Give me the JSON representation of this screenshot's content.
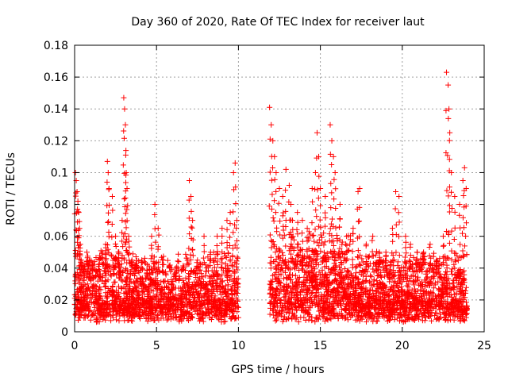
{
  "chart_data": {
    "type": "scatter",
    "title": "Day 360 of 2020, Rate Of TEC Index for receiver laut",
    "xlabel": "GPS time / hours",
    "ylabel": "ROTI / TECUs",
    "xlim": [
      0,
      25
    ],
    "ylim": [
      0,
      0.18
    ],
    "x_ticks": [
      0,
      5,
      10,
      15,
      20,
      25
    ],
    "y_ticks": [
      0,
      0.02,
      0.04,
      0.06,
      0.08,
      0.1,
      0.12,
      0.14,
      0.16,
      0.18
    ],
    "x_tick_labels": [
      "0",
      "5",
      "10",
      "15",
      "20",
      "25"
    ],
    "y_tick_labels": [
      "0",
      "0.02",
      "0.04",
      "0.06",
      "0.08",
      "0.1",
      "0.12",
      "0.14",
      "0.16",
      "0.18"
    ],
    "grid": true,
    "marker": "+",
    "color": "#ff0000",
    "data_gap": [
      10.0,
      11.9
    ],
    "series": [
      {
        "x": [
          0.05,
          0.1,
          0.15,
          0.2,
          0.25,
          0.3,
          0.35,
          0.4,
          0.5,
          0.6,
          0.75,
          0.9,
          1.1,
          1.3,
          1.5,
          1.7,
          1.9,
          2.0,
          2.05,
          2.1,
          2.3,
          2.5,
          2.7,
          2.9,
          3.0,
          3.05,
          3.1,
          3.12,
          3.15,
          3.2,
          3.3,
          3.5,
          3.8,
          4.1,
          4.4,
          4.7,
          4.9,
          5.1,
          5.4,
          5.8,
          6.2,
          6.6,
          7.0,
          7.1,
          7.2,
          7.5,
          7.9,
          8.3,
          8.7,
          9.0,
          9.3,
          9.5,
          9.7,
          9.8,
          9.9,
          11.9,
          12.0,
          12.1,
          12.2,
          12.3,
          12.5,
          12.7,
          12.9,
          13.1,
          13.2,
          13.3,
          13.6,
          13.9,
          14.2,
          14.5,
          14.7,
          14.8,
          14.9,
          15.0,
          15.3,
          15.6,
          15.7,
          15.8,
          15.9,
          16.2,
          16.6,
          17.0,
          17.3,
          17.4,
          17.8,
          18.2,
          18.6,
          19.0,
          19.4,
          19.6,
          19.8,
          20.2,
          20.5,
          20.9,
          21.3,
          21.7,
          22.1,
          22.5,
          22.7,
          22.8,
          22.85,
          22.9,
          23.0,
          23.2,
          23.5,
          23.7,
          23.8,
          23.9
        ],
        "y": [
          0.1,
          0.095,
          0.088,
          0.082,
          0.075,
          0.065,
          0.055,
          0.045,
          0.04,
          0.035,
          0.05,
          0.045,
          0.04,
          0.035,
          0.045,
          0.05,
          0.055,
          0.107,
          0.1,
          0.09,
          0.085,
          0.06,
          0.05,
          0.07,
          0.147,
          0.14,
          0.13,
          0.111,
          0.1,
          0.09,
          0.06,
          0.045,
          0.04,
          0.045,
          0.035,
          0.06,
          0.08,
          0.065,
          0.045,
          0.04,
          0.035,
          0.04,
          0.095,
          0.085,
          0.07,
          0.045,
          0.06,
          0.05,
          0.06,
          0.065,
          0.07,
          0.075,
          0.1,
          0.106,
          0.07,
          0.141,
          0.13,
          0.12,
          0.11,
          0.1,
          0.09,
          0.085,
          0.102,
          0.092,
          0.08,
          0.07,
          0.075,
          0.07,
          0.065,
          0.09,
          0.1,
          0.125,
          0.11,
          0.09,
          0.085,
          0.13,
          0.12,
          0.11,
          0.1,
          0.08,
          0.06,
          0.065,
          0.088,
          0.09,
          0.055,
          0.06,
          0.05,
          0.05,
          0.065,
          0.088,
          0.085,
          0.06,
          0.055,
          0.05,
          0.05,
          0.055,
          0.045,
          0.06,
          0.163,
          0.155,
          0.14,
          0.125,
          0.1,
          0.085,
          0.08,
          0.095,
          0.103,
          0.09
        ]
      }
    ]
  }
}
